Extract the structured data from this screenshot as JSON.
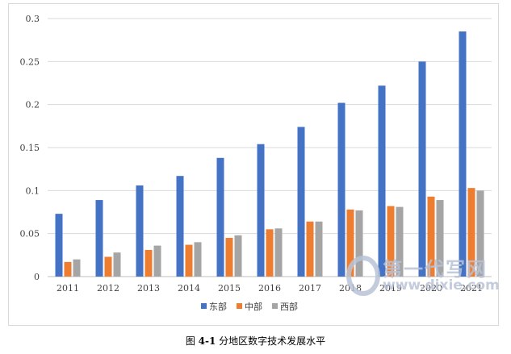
{
  "chart_data": {
    "type": "bar",
    "categories": [
      "2011",
      "2012",
      "2013",
      "2014",
      "2015",
      "2016",
      "2017",
      "2018",
      "2019",
      "2020",
      "2021"
    ],
    "series": [
      {
        "name": "东部",
        "color": "#4472c4",
        "values": [
          0.073,
          0.089,
          0.106,
          0.117,
          0.138,
          0.154,
          0.174,
          0.202,
          0.222,
          0.25,
          0.285
        ]
      },
      {
        "name": "中部",
        "color": "#ed7d31",
        "values": [
          0.017,
          0.023,
          0.031,
          0.037,
          0.045,
          0.055,
          0.064,
          0.078,
          0.082,
          0.093,
          0.103
        ]
      },
      {
        "name": "西部",
        "color": "#a5a5a5",
        "values": [
          0.02,
          0.028,
          0.036,
          0.04,
          0.048,
          0.056,
          0.064,
          0.077,
          0.081,
          0.089,
          0.1
        ]
      }
    ],
    "yticks": [
      "0",
      "0.05",
      "0.1",
      "0.15",
      "0.2",
      "0.25",
      "0.3"
    ],
    "ylim": [
      0,
      0.3
    ],
    "grid": true,
    "legend_position": "bottom"
  },
  "caption": {
    "prefix": "图 ",
    "number": "4-1",
    "text": " 分地区数字技术发展水平"
  },
  "watermark": {
    "line1": "第一代写网",
    "line2": "www.dixie.com"
  }
}
